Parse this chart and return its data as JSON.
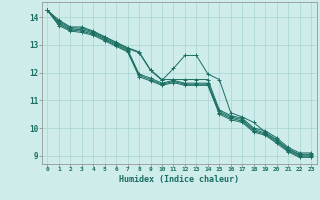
{
  "xlabel": "Humidex (Indice chaleur)",
  "bg_color": "#ceecea",
  "grid_color": "#aed8d4",
  "line_color": "#1a6e62",
  "xlim": [
    -0.5,
    23.5
  ],
  "ylim": [
    8.7,
    14.55
  ],
  "yticks": [
    9,
    10,
    11,
    12,
    13,
    14
  ],
  "xticks": [
    0,
    1,
    2,
    3,
    4,
    5,
    6,
    7,
    8,
    9,
    10,
    11,
    12,
    13,
    14,
    15,
    16,
    17,
    18,
    19,
    20,
    21,
    22,
    23
  ],
  "series": [
    [
      14.25,
      13.9,
      13.65,
      13.65,
      13.5,
      13.3,
      13.1,
      12.9,
      12.75,
      12.1,
      11.75,
      11.75,
      11.75,
      11.75,
      11.75,
      10.65,
      10.45,
      10.35,
      10.0,
      9.9,
      9.65,
      9.3,
      9.1,
      9.1
    ],
    [
      14.25,
      13.85,
      13.62,
      13.6,
      13.47,
      13.27,
      13.07,
      12.87,
      12.72,
      12.08,
      11.72,
      12.15,
      12.62,
      12.62,
      11.95,
      11.75,
      10.55,
      10.4,
      10.2,
      9.85,
      9.58,
      9.25,
      9.05,
      9.05
    ],
    [
      14.25,
      13.8,
      13.58,
      13.55,
      13.43,
      13.23,
      13.03,
      12.83,
      11.95,
      11.8,
      11.62,
      11.72,
      11.62,
      11.62,
      11.62,
      10.6,
      10.4,
      10.3,
      9.95,
      9.82,
      9.55,
      9.22,
      9.02,
      9.02
    ],
    [
      14.25,
      13.75,
      13.54,
      13.5,
      13.39,
      13.19,
      12.99,
      12.79,
      11.9,
      11.75,
      11.58,
      11.68,
      11.58,
      11.58,
      11.58,
      10.55,
      10.35,
      10.25,
      9.9,
      9.78,
      9.5,
      9.18,
      8.98,
      8.98
    ],
    [
      14.25,
      13.7,
      13.5,
      13.45,
      13.35,
      13.15,
      12.95,
      12.75,
      11.85,
      11.7,
      11.54,
      11.64,
      11.54,
      11.54,
      11.54,
      10.5,
      10.3,
      10.2,
      9.85,
      9.74,
      9.45,
      9.14,
      8.94,
      8.94
    ]
  ]
}
